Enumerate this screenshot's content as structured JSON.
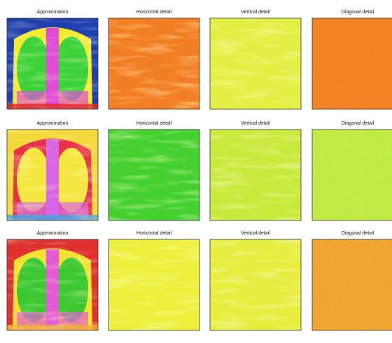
{
  "panels": [
    [
      "Approximation",
      "Horizontal detail",
      "Vertical detail",
      "Diagonal detail"
    ],
    [
      "Approximation",
      "Horizontal detail",
      "Vertical detail",
      "Diagonal detail"
    ],
    [
      "Approximation",
      "Horizontal detail",
      "Vertical detail",
      "Diagonal detail"
    ]
  ]
}
